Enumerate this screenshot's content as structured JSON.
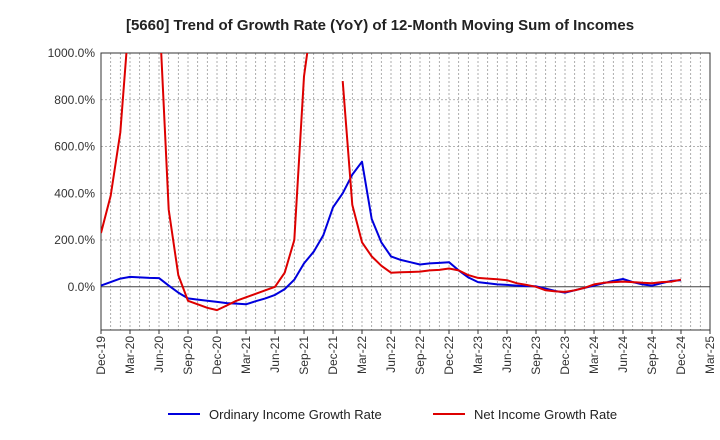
{
  "chart_data": {
    "type": "line",
    "title": "[5660]  Trend of Growth Rate (YoY) of 12-Month Moving Sum of Incomes",
    "xlabel": "",
    "ylabel": "",
    "x": [
      "Dec-19",
      "Jan-20",
      "Feb-20",
      "Mar-20",
      "Apr-20",
      "May-20",
      "Jun-20",
      "Jul-20",
      "Aug-20",
      "Sep-20",
      "Oct-20",
      "Nov-20",
      "Dec-20",
      "Jan-21",
      "Feb-21",
      "Mar-21",
      "Apr-21",
      "May-21",
      "Jun-21",
      "Jul-21",
      "Aug-21",
      "Sep-21",
      "Oct-21",
      "Nov-21",
      "Dec-21",
      "Jan-22",
      "Feb-22",
      "Mar-22",
      "Apr-22",
      "May-22",
      "Jun-22",
      "Jul-22",
      "Aug-22",
      "Sep-22",
      "Oct-22",
      "Nov-22",
      "Dec-22",
      "Jan-23",
      "Feb-23",
      "Mar-23",
      "Apr-23",
      "May-23",
      "Jun-23",
      "Jul-23",
      "Aug-23",
      "Sep-23",
      "Oct-23",
      "Nov-23",
      "Dec-23",
      "Jan-24",
      "Feb-24",
      "Mar-24",
      "Apr-24",
      "May-24",
      "Jun-24",
      "Jul-24",
      "Aug-24",
      "Sep-24",
      "Oct-24",
      "Nov-24",
      "Dec-24",
      "Jan-25",
      "Feb-25",
      "Mar-25"
    ],
    "x_tick_labels": [
      "Dec-19",
      "Mar-20",
      "Jun-20",
      "Sep-20",
      "Dec-20",
      "Mar-21",
      "Jun-21",
      "Sep-21",
      "Dec-21",
      "Mar-22",
      "Jun-22",
      "Sep-22",
      "Dec-22",
      "Mar-23",
      "Jun-23",
      "Sep-23",
      "Dec-23",
      "Mar-24",
      "Jun-24",
      "Sep-24",
      "Dec-24",
      "Mar-25"
    ],
    "y_tick_labels": [
      "0.0%",
      "200.0%",
      "400.0%",
      "600.0%",
      "800.0%",
      "1000.0%"
    ],
    "y_ticks": [
      0,
      200,
      400,
      600,
      800,
      1000
    ],
    "ylim": [
      -185,
      1000
    ],
    "grid": true,
    "legend_position": "bottom",
    "series": [
      {
        "name": "Ordinary Income Growth Rate",
        "color": "#0000dd",
        "values": [
          5,
          20,
          35,
          42,
          40,
          38,
          37,
          5,
          -25,
          -50,
          -55,
          -60,
          -65,
          -70,
          -72,
          -75,
          -62,
          -50,
          -35,
          -10,
          30,
          100,
          150,
          220,
          340,
          400,
          480,
          535,
          290,
          190,
          130,
          115,
          105,
          95,
          100,
          102,
          105,
          70,
          40,
          20,
          15,
          10,
          8,
          5,
          3,
          2,
          -8,
          -18,
          -25,
          -15,
          -5,
          5,
          15,
          25,
          33,
          20,
          10,
          5,
          15,
          25,
          28,
          null,
          null,
          null
        ]
      },
      {
        "name": "Net Income Growth Rate",
        "color": "#dd0000",
        "values": [
          230,
          390,
          660,
          1200,
          null,
          null,
          1200,
          330,
          50,
          -60,
          -75,
          -90,
          -100,
          -80,
          -60,
          -45,
          -30,
          -15,
          0,
          60,
          200,
          900,
          1200,
          null,
          null,
          880,
          350,
          190,
          130,
          90,
          60,
          62,
          63,
          65,
          70,
          72,
          78,
          70,
          50,
          38,
          35,
          32,
          28,
          15,
          8,
          0,
          -15,
          -20,
          -22,
          -15,
          -5,
          10,
          17,
          20,
          22,
          20,
          17,
          15,
          20,
          22,
          30,
          null,
          null,
          null
        ]
      }
    ]
  }
}
